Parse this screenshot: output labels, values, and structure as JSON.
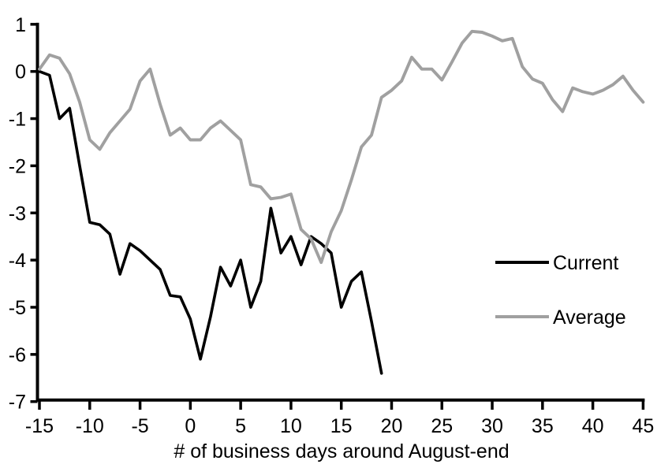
{
  "chart_data": {
    "type": "line",
    "title": "",
    "xlabel": "# of business days around August-end",
    "ylabel": "",
    "xlim": [
      -15,
      45
    ],
    "ylim": [
      -7,
      1
    ],
    "x_ticks": [
      -15,
      -10,
      -5,
      0,
      5,
      10,
      15,
      20,
      25,
      30,
      35,
      40,
      45
    ],
    "y_ticks": [
      1,
      0,
      -1,
      -2,
      -3,
      -4,
      -5,
      -6,
      -7
    ],
    "grid": false,
    "legend_position": "middle-right",
    "axis_color": "#000000",
    "series": [
      {
        "name": "Current",
        "color": "#000000",
        "width": 3.6,
        "x": [
          -15,
          -14,
          -13,
          -12,
          -11,
          -10,
          -9,
          -8,
          -7,
          -6,
          -5,
          -4,
          -3,
          -2,
          -1,
          0,
          1,
          2,
          3,
          4,
          5,
          6,
          7,
          8,
          9,
          10,
          11,
          12,
          13,
          14,
          15,
          16,
          17,
          18,
          19
        ],
        "values": [
          0.0,
          -0.08,
          -1.0,
          -0.78,
          -2.0,
          -3.2,
          -3.25,
          -3.45,
          -4.3,
          -3.65,
          -3.8,
          -4.0,
          -4.2,
          -4.75,
          -4.78,
          -5.25,
          -6.1,
          -5.2,
          -4.15,
          -4.55,
          -4.0,
          -5.0,
          -4.45,
          -2.9,
          -3.85,
          -3.5,
          -4.1,
          -3.5,
          -3.65,
          -3.85,
          -5.0,
          -4.45,
          -4.25,
          -5.3,
          -6.4
        ]
      },
      {
        "name": "Average",
        "color": "#a0a0a0",
        "width": 3.9,
        "x": [
          -15,
          -14,
          -13,
          -12,
          -11,
          -10,
          -9,
          -8,
          -7,
          -6,
          -5,
          -4,
          -3,
          -2,
          -1,
          0,
          1,
          2,
          3,
          4,
          5,
          6,
          7,
          8,
          9,
          10,
          11,
          12,
          13,
          14,
          15,
          16,
          17,
          18,
          19,
          20,
          21,
          22,
          23,
          24,
          25,
          26,
          27,
          28,
          29,
          30,
          31,
          32,
          33,
          34,
          35,
          36,
          37,
          38,
          39,
          40,
          41,
          42,
          43,
          44,
          45
        ],
        "values": [
          0.05,
          0.35,
          0.28,
          -0.05,
          -0.65,
          -1.45,
          -1.65,
          -1.3,
          -1.05,
          -0.8,
          -0.2,
          0.05,
          -0.7,
          -1.35,
          -1.2,
          -1.45,
          -1.45,
          -1.2,
          -1.05,
          -1.25,
          -1.45,
          -2.4,
          -2.45,
          -2.7,
          -2.67,
          -2.6,
          -3.35,
          -3.55,
          -4.05,
          -3.4,
          -2.95,
          -2.3,
          -1.6,
          -1.35,
          -0.55,
          -0.4,
          -0.2,
          0.3,
          0.05,
          0.05,
          -0.18,
          0.2,
          0.6,
          0.85,
          0.83,
          0.75,
          0.65,
          0.7,
          0.1,
          -0.16,
          -0.25,
          -0.6,
          -0.85,
          -0.35,
          -0.43,
          -0.48,
          -0.4,
          -0.28,
          -0.1,
          -0.4,
          -0.65
        ]
      }
    ]
  }
}
